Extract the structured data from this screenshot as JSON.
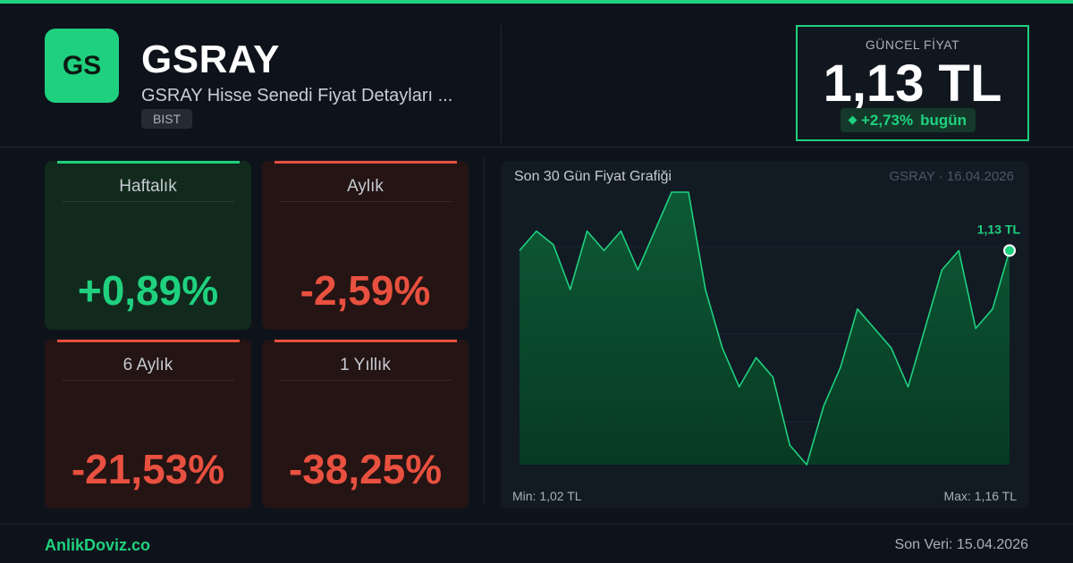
{
  "header": {
    "logo_text": "GS",
    "symbol": "GSRAY",
    "subtitle": "GSRAY Hisse Senedi Fiyat Detayları ...",
    "exchange": "BIST"
  },
  "price": {
    "label": "GÜNCEL FİYAT",
    "value": "1,13 TL",
    "change": "+2,73%",
    "period": "bugün"
  },
  "cards": [
    {
      "label": "Haftalık",
      "value": "+0,89%",
      "trend": "positive"
    },
    {
      "label": "Aylık",
      "value": "-2,59%",
      "trend": "negative"
    },
    {
      "label": "6 Aylık",
      "value": "-21,53%",
      "trend": "negative"
    },
    {
      "label": "1 Yıllık",
      "value": "-38,25%",
      "trend": "negative"
    }
  ],
  "chart_panel": {
    "title": "Son 30 Gün Fiyat Grafiği",
    "meta": "GSRAY · 16.04.2026",
    "last_label": "1,13 TL",
    "min_label": "Min: 1,02 TL",
    "max_label": "Max: 1,16 TL"
  },
  "chart_data": {
    "type": "area",
    "ylim": [
      1.02,
      1.16
    ],
    "grid": true,
    "values": [
      1.13,
      1.14,
      1.133,
      1.11,
      1.14,
      1.13,
      1.14,
      1.12,
      1.14,
      1.16,
      1.16,
      1.11,
      1.08,
      1.06,
      1.075,
      1.065,
      1.03,
      1.02,
      1.05,
      1.07,
      1.1,
      1.09,
      1.08,
      1.06,
      1.09,
      1.12,
      1.13,
      1.09,
      1.1,
      1.13
    ]
  },
  "colors": {
    "accent": "#1fd17f",
    "negative": "#e8503f",
    "background": "#0e131b"
  },
  "footer": {
    "brand": "AnlikDoviz.co",
    "last_data": "Son Veri: 15.04.2026"
  }
}
